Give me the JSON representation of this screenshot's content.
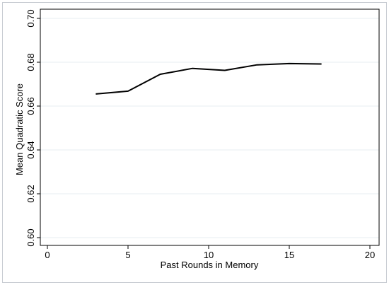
{
  "chart_data": {
    "type": "line",
    "title": "",
    "xlabel": "Past Rounds in Memory",
    "ylabel": "Mean Quadratic Score",
    "xlim": [
      0,
      20
    ],
    "ylim": [
      0.6,
      0.7
    ],
    "xticks": [
      0,
      5,
      10,
      15,
      20
    ],
    "yticks": [
      0.6,
      0.62,
      0.64,
      0.66,
      0.68,
      0.7
    ],
    "xtick_labels": [
      "0",
      "5",
      "10",
      "15",
      "20"
    ],
    "ytick_labels": [
      "0.60",
      "0.62",
      "0.64",
      "0.66",
      "0.68",
      "0.70"
    ],
    "grid": true,
    "series": [
      {
        "x": [
          3,
          5,
          7,
          9,
          11,
          13,
          15,
          17
        ],
        "values": [
          0.6655,
          0.6668,
          0.6745,
          0.6772,
          0.6763,
          0.6788,
          0.6794,
          0.6792
        ],
        "color": "#000000"
      }
    ]
  }
}
